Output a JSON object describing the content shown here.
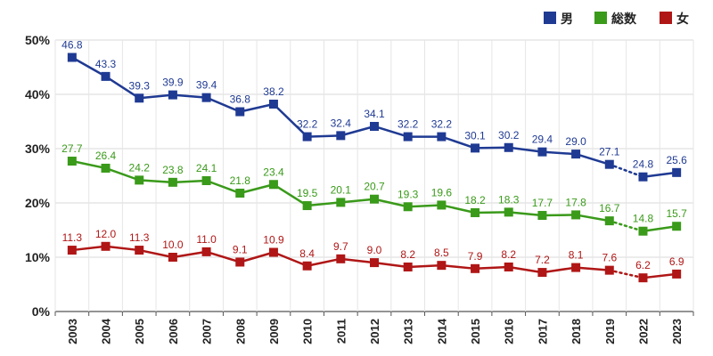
{
  "chart_data": {
    "type": "line",
    "title": "",
    "xlabel": "",
    "ylabel": "",
    "ylim": [
      0,
      50
    ],
    "y_ticks": [
      0,
      10,
      20,
      30,
      40,
      50
    ],
    "y_tick_labels": [
      "0%",
      "10%",
      "20%",
      "30%",
      "40%",
      "50%"
    ],
    "categories": [
      "2003",
      "2004",
      "2005",
      "2006",
      "2007",
      "2008",
      "2009",
      "2010",
      "2011",
      "2012",
      "2013",
      "2014",
      "2015",
      "2016",
      "2017",
      "2018",
      "2019",
      "2022",
      "2023"
    ],
    "dashed_segment_note": "segment between 2019 and 2022 is dotted",
    "legend_position": "top-right",
    "series": [
      {
        "name": "男",
        "color": "#1f3a93",
        "values": [
          46.8,
          43.3,
          39.3,
          39.9,
          39.4,
          36.8,
          38.2,
          32.2,
          32.4,
          34.1,
          32.2,
          32.2,
          30.1,
          30.2,
          29.4,
          29.0,
          27.1,
          24.8,
          25.6
        ],
        "labels": [
          "46.8",
          "43.3",
          "39.3",
          "39.9",
          "39.4",
          "36.8",
          "38.2",
          "32.2",
          "32.4",
          "34.1",
          "32.2",
          "32.2",
          "30.1",
          "30.2",
          "29.4",
          "29.0",
          "27.1",
          "24.8",
          "25.6"
        ]
      },
      {
        "name": "総数",
        "color": "#3a9a1a",
        "values": [
          27.7,
          26.4,
          24.2,
          23.8,
          24.1,
          21.8,
          23.4,
          19.5,
          20.1,
          20.7,
          19.3,
          19.6,
          18.2,
          18.3,
          17.7,
          17.8,
          16.7,
          14.8,
          15.7
        ],
        "labels": [
          "27.7",
          "26.4",
          "24.2",
          "23.8",
          "24.1",
          "21.8",
          "23.4",
          "19.5",
          "20.1",
          "20.7",
          "19.3",
          "19.6",
          "18.2",
          "18.3",
          "17.7",
          "17.8",
          "16.7",
          "14.8",
          "15.7"
        ]
      },
      {
        "name": "女",
        "color": "#b01616",
        "values": [
          11.3,
          12.0,
          11.3,
          10.0,
          11.0,
          9.1,
          10.9,
          8.4,
          9.7,
          9.0,
          8.2,
          8.5,
          7.9,
          8.2,
          7.2,
          8.1,
          7.6,
          6.2,
          6.9
        ],
        "labels": [
          "11.3",
          "12.0",
          "11.3",
          "10.0",
          "11.0",
          "9.1",
          "10.9",
          "8.4",
          "9.7",
          "9.0",
          "8.2",
          "8.5",
          "7.9",
          "8.2",
          "7.2",
          "8.1",
          "7.6",
          "6.2",
          "6.9"
        ]
      }
    ]
  }
}
